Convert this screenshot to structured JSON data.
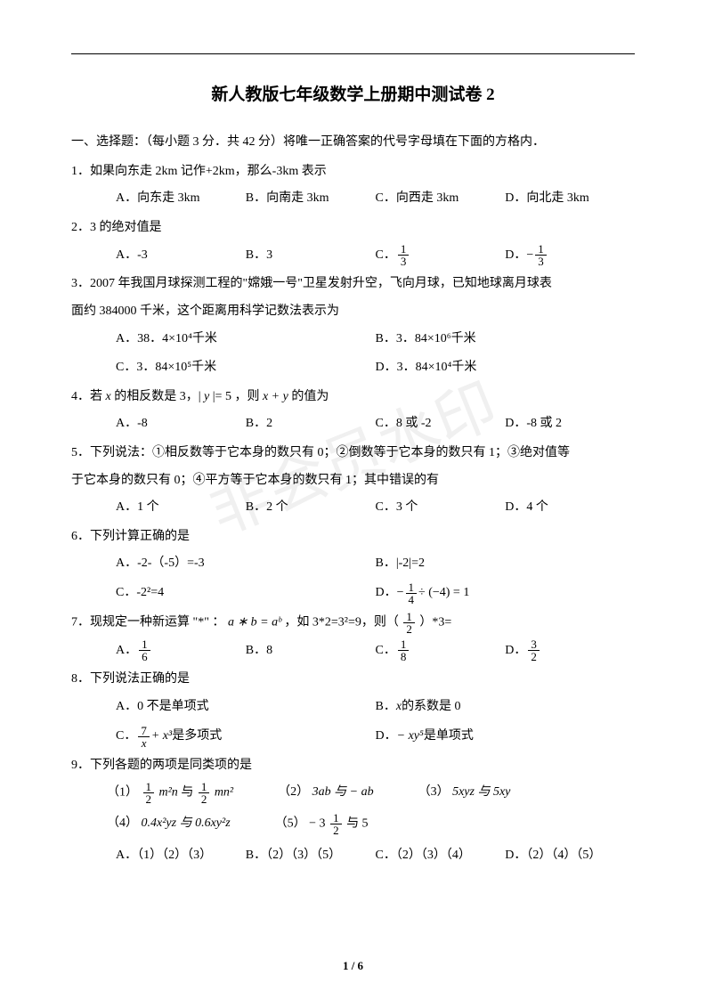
{
  "title": "新人教版七年级数学上册期中测试卷 2",
  "section_header": "一、选择题：（每小题 3 分．共 42 分）将唯一正确答案的代号字母填在下面的方格内．",
  "watermark": "非会员水印",
  "page_num": "1 / 6",
  "q1": {
    "text": "1．如果向东走 2km 记作+2km，那么-3km 表示",
    "A": "A．向东走 3km",
    "B": "B．向南走 3km",
    "C": "C．向西走 3km",
    "D": "D．向北走 3km"
  },
  "q2": {
    "text": "2．3 的绝对值是",
    "A": "A．-3",
    "B": "B．3",
    "C_pre": "C．",
    "D_pre": "D．"
  },
  "q3": {
    "text1": "3．2007 年我国月球探测工程的\"嫦娥一号\"卫星发射升空，飞向月球，已知地球离月球表",
    "text2": "面约 384000 千米，这个距离用科学记数法表示为",
    "A": "A．38．4×10⁴千米",
    "B": "B．3．84×10⁶千米",
    "C": "C．3．84×10⁵千米",
    "D": "D．3．84×10⁴千米"
  },
  "q4": {
    "text_pre": "4．若 ",
    "text_mid": " 的相反数是 3，| ",
    "text_mid2": " |= 5 ，则 ",
    "text_post": " 的值为",
    "A": "A．-8",
    "B": "B．2",
    "C": "C．8 或 -2",
    "D": "D．-8 或 2"
  },
  "q5": {
    "text1": "5．下列说法：①相反数等于它本身的数只有 0；②倒数等于它本身的数只有 1；③绝对值等",
    "text2": "于它本身的数只有 0；④平方等于它本身的数只有 1；其中错误的有",
    "A": "A．1 个",
    "B": "B．2 个",
    "C": "C．3 个",
    "D": "D．4 个"
  },
  "q6": {
    "text": "6．下列计算正确的是",
    "A": "A．-2-（-5）=-3",
    "B": "B．|-2|=2",
    "C": "C．-2²=4",
    "D_pre": "D．",
    "D_post": " ÷ (−4) = 1"
  },
  "q7": {
    "text_pre": "7．现规定一种新运算 \"*\" ：",
    "text_formula": "a ∗ b = aᵇ",
    "text_mid": " ，如 3*2=3²=9，则（",
    "text_post": "）*3=",
    "A_pre": "A．",
    "B": "B．8",
    "C_pre": "C．",
    "D_pre": "D．"
  },
  "q8": {
    "text": "8．下列说法正确的是",
    "A": "A．0 不是单项式",
    "B_pre": "B．",
    "B_post": " 的系数是 0",
    "C_pre": "C．",
    "C_post": " 是多项式",
    "D_pre": "D．",
    "D_post": " 是单项式"
  },
  "q9": {
    "text": "9．下列各题的两项是同类项的是",
    "s1_pre": "（1）",
    "s2": "（2）",
    "s2_body": "3ab 与 − ab",
    "s3": "（3）",
    "s3_body": "5xyz 与 5xy",
    "s4": "（4）",
    "s4_body": "0.4x²yz 与 0.6xy²z",
    "s5": "（5）",
    "s5_post": "与 5",
    "A": "A．（1）（2）（3）",
    "B": "B．（2）（3）（5）",
    "C": "C．（2）（3）（4）",
    "D": "D．（2）（4）（5）"
  },
  "frac": {
    "one": "1",
    "two": "2",
    "three": "3",
    "six": "6",
    "eight": "8",
    "seven": "7",
    "four": "4"
  }
}
